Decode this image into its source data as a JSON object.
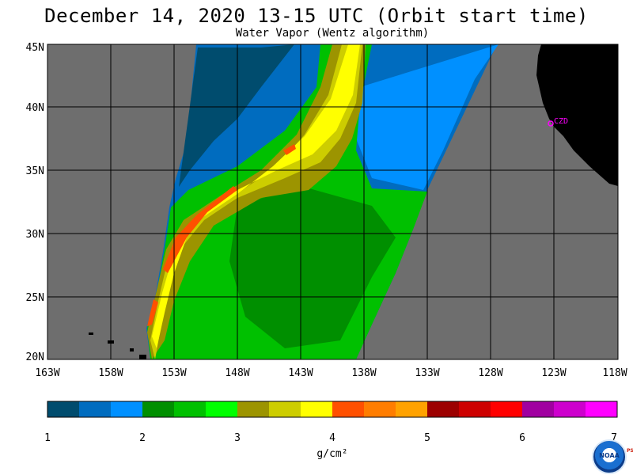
{
  "title": "December 14, 2020  13-15 UTC  (Orbit start time)",
  "subtitle": "Water Vapor (Wentz algorithm)",
  "map": {
    "lat_labels": [
      "45N",
      "40N",
      "35N",
      "30N",
      "25N",
      "20N"
    ],
    "lon_labels": [
      "163W",
      "158W",
      "153W",
      "148W",
      "143W",
      "138W",
      "133W",
      "128W",
      "123W",
      "118W"
    ],
    "lon_range": [
      -163,
      -118
    ],
    "lat_range": [
      20,
      45
    ],
    "no_data_color": "#6e6e6e",
    "land_color": "#000000",
    "station_label": "CZD",
    "station_color": "#ff00ff"
  },
  "colorbar": {
    "colors": [
      "#004c6e",
      "#006cbf",
      "#0090ff",
      "#008f00",
      "#00c000",
      "#00ff00",
      "#9c9400",
      "#cdcd00",
      "#ffff00",
      "#ff5000",
      "#ff7d00",
      "#ffa200",
      "#9c0000",
      "#cd0000",
      "#ff0000",
      "#a000a0",
      "#cd00cd",
      "#ff00ff"
    ],
    "tick_labels": [
      "1",
      "2",
      "3",
      "4",
      "5",
      "6",
      "7"
    ],
    "unit_label": "g/cm²"
  },
  "logo": {
    "name": "NOAA",
    "side_text": "PSL"
  }
}
